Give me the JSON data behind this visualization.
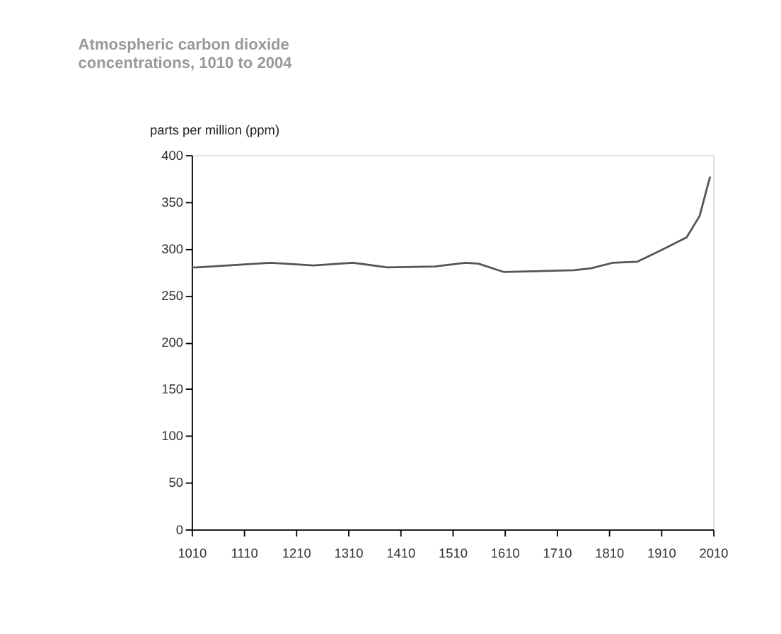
{
  "chart_data": {
    "type": "line",
    "title": [
      "Atmospheric carbon dioxide",
      "concentrations, 1010 to 2004"
    ],
    "ylabel": "parts per million (ppm)",
    "x": [
      1010,
      1020,
      1161,
      1244,
      1319,
      1385,
      1476,
      1535,
      1560,
      1609,
      1743,
      1776,
      1818,
      1864,
      1909,
      1959,
      1984,
      2004
    ],
    "series": [
      {
        "color": "#555555",
        "values": [
          280,
          280,
          285,
          282,
          285,
          280,
          281,
          285,
          284,
          275,
          277,
          279,
          285,
          286,
          298,
          312,
          335,
          377
        ]
      }
    ],
    "xlim": [
      1010,
      2010
    ],
    "xticks": [
      1010,
      1110,
      1210,
      1310,
      1410,
      1510,
      1610,
      1710,
      1810,
      1910,
      2010
    ],
    "ylim": [
      0,
      400
    ],
    "yticks": [
      0,
      50,
      100,
      150,
      200,
      250,
      300,
      350,
      400
    ],
    "grid": false,
    "marker": "none",
    "line_style": "solid"
  }
}
